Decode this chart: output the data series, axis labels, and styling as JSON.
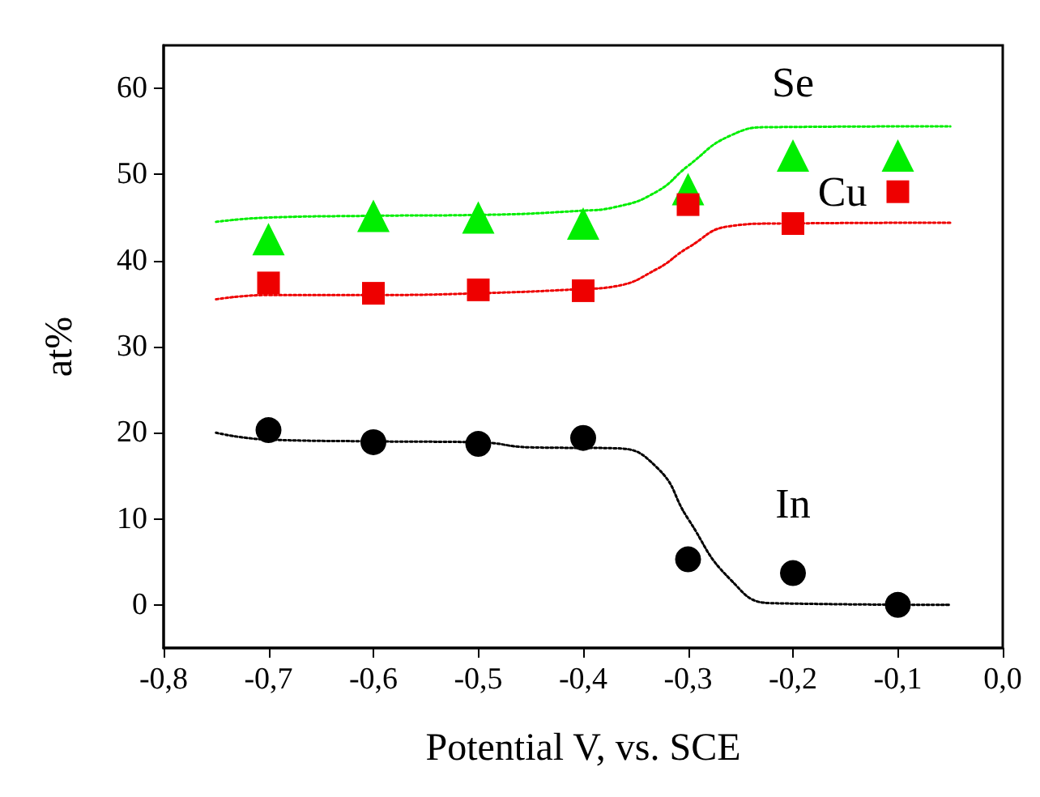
{
  "chart_data": {
    "type": "scatter",
    "xlabel": "Potential V, vs. SCE",
    "ylabel": "at%",
    "xlim": [
      -0.8,
      0
    ],
    "ylim": [
      -5,
      65
    ],
    "xticks": [
      {
        "value": -0.8,
        "label": "-0,8"
      },
      {
        "value": -0.7,
        "label": "-0,7"
      },
      {
        "value": -0.6,
        "label": "-0,6"
      },
      {
        "value": -0.5,
        "label": "-0,5"
      },
      {
        "value": -0.4,
        "label": "-0,4"
      },
      {
        "value": -0.3,
        "label": "-0,3"
      },
      {
        "value": -0.2,
        "label": "-0,2"
      },
      {
        "value": -0.1,
        "label": "-0,1"
      },
      {
        "value": 0,
        "label": "0,0"
      }
    ],
    "yticks": [
      0,
      10,
      20,
      30,
      40,
      50,
      60
    ],
    "grid": false,
    "legend": false,
    "x": [
      -0.7,
      -0.6,
      -0.5,
      -0.4,
      -0.3,
      -0.2,
      -0.1
    ],
    "series": [
      {
        "name": "Se",
        "color": "#00ee00",
        "marker": "triangle",
        "values": [
          42.5,
          45.2,
          45,
          44.3,
          48.3,
          52.2,
          52.2
        ]
      },
      {
        "name": "Cu",
        "color": "#ee0000",
        "marker": "square",
        "values": [
          37.4,
          36.2,
          36.6,
          36.5,
          46.5,
          44.3,
          48
        ]
      },
      {
        "name": "In",
        "color": "#000000",
        "marker": "circle",
        "values": [
          20.3,
          18.9,
          18.7,
          19.4,
          5.3,
          3.7,
          0
        ]
      },
      {
        "type": "line",
        "color": "#00ee00",
        "marker": "none",
        "line_style": "dotted",
        "x": [
          -0.75,
          -0.7,
          -0.6,
          -0.5,
          -0.4,
          -0.37,
          -0.33,
          -0.3,
          -0.26,
          -0.22,
          -0.05
        ],
        "values": [
          44.5,
          45,
          45.2,
          45.3,
          45.8,
          46.2,
          48,
          51,
          54.5,
          55.5,
          55.6
        ]
      },
      {
        "type": "line",
        "color": "#ee0000",
        "marker": "none",
        "line_style": "dotted",
        "x": [
          -0.75,
          -0.7,
          -0.6,
          -0.5,
          -0.4,
          -0.37,
          -0.33,
          -0.3,
          -0.26,
          -0.22,
          -0.05
        ],
        "values": [
          35.5,
          36,
          36,
          36.2,
          36.7,
          37,
          39,
          41.5,
          44,
          44.3,
          44.4
        ]
      },
      {
        "type": "line",
        "color": "#000000",
        "marker": "none",
        "line_style": "dotted",
        "x": [
          -0.75,
          -0.7,
          -0.6,
          -0.5,
          -0.45,
          -0.37,
          -0.33,
          -0.3,
          -0.26,
          -0.22,
          -0.05
        ],
        "values": [
          20,
          19.2,
          19,
          18.9,
          18.3,
          18.2,
          16,
          10,
          3,
          0.2,
          0
        ]
      }
    ]
  }
}
